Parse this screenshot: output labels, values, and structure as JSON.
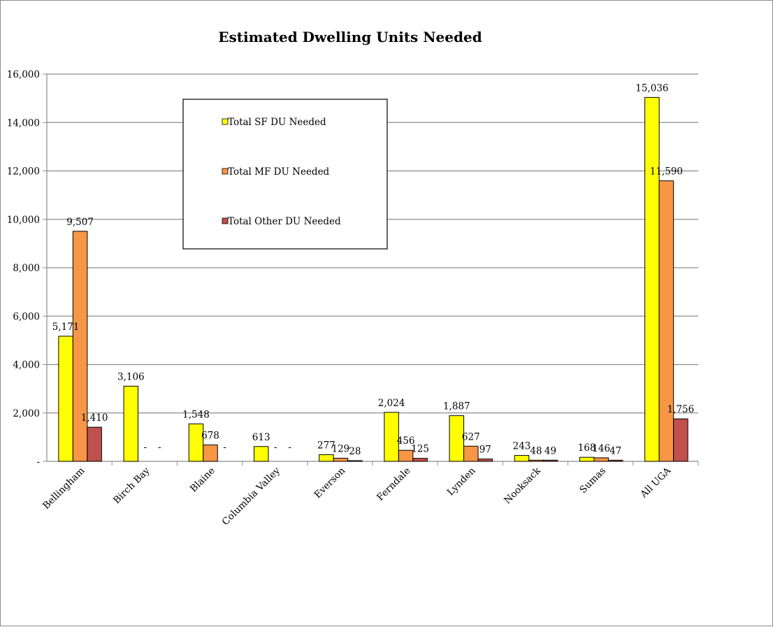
{
  "chart_data": {
    "type": "bar",
    "title": "Estimated Dwelling Units Needed",
    "xlabel": "",
    "ylabel": "",
    "ylim": [
      0,
      16000
    ],
    "ytick_step": 2000,
    "ytick_labels": [
      "-",
      "2,000",
      "4,000",
      "6,000",
      "8,000",
      "10,000",
      "12,000",
      "14,000",
      "16,000"
    ],
    "grid": true,
    "legend_position": "upper-left-center",
    "categories": [
      "Bellingham",
      "Birch Bay",
      "Blaine",
      "Columbia Valley",
      "Everson",
      "Ferndale",
      "Lynden",
      "Nooksack",
      "Sumas",
      "All UGA"
    ],
    "series": [
      {
        "name": "Total SF DU Needed",
        "color": "#ffff00",
        "values": [
          5171,
          3106,
          1548,
          613,
          277,
          2024,
          1887,
          243,
          168,
          15036
        ],
        "labels": [
          "5,171",
          "3,106",
          "1,548",
          "613",
          "277",
          "2,024",
          "1,887",
          "243",
          "168",
          "15,036"
        ]
      },
      {
        "name": "Total MF DU Needed",
        "color": "#f79646",
        "values": [
          9507,
          0,
          678,
          0,
          129,
          456,
          627,
          48,
          146,
          11590
        ],
        "labels": [
          "9,507",
          "-",
          "678",
          "-",
          "129",
          "456",
          "627",
          "48",
          "146",
          "11,590"
        ]
      },
      {
        "name": "Total Other DU Needed",
        "color": "#c0504d",
        "values": [
          1410,
          0,
          0,
          0,
          28,
          125,
          97,
          49,
          47,
          1756
        ],
        "labels": [
          "1,410",
          "-",
          "-",
          "-",
          "28",
          "125",
          "97",
          "49",
          "47",
          "1,756"
        ]
      }
    ]
  }
}
